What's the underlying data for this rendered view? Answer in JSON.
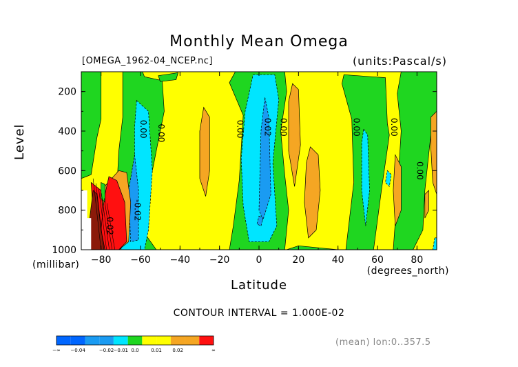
{
  "colors": {
    "dark_blue": "#0066ff",
    "mid_blue": "#1a9bf2",
    "light_blue": "#00e5ff",
    "green": "#1fd620",
    "yellow": "#ffff00",
    "orange": "#f5a623",
    "red": "#ff1010",
    "dark_red": "#8b1a0a"
  },
  "chart_data": {
    "type": "contour",
    "title": "Monthly Mean Omega",
    "file_label": "[OMEGA_1962-04_NCEP.nc]",
    "units_label": "(units:Pascal/s)",
    "xlabel": "Latitude",
    "xunit_label": "(degrees_north)",
    "ylabel": "Level",
    "yunit_label": "(millibar)",
    "xlim": [
      -90,
      90
    ],
    "ylim": [
      1000,
      100
    ],
    "x_ticks": [
      -80,
      -60,
      -40,
      -20,
      0,
      20,
      40,
      60,
      80
    ],
    "x_tick_labels": [
      "−80",
      "−60",
      "−40",
      "−20",
      "0",
      "20",
      "40",
      "60",
      "80"
    ],
    "y_ticks": [
      200,
      400,
      600,
      800,
      1000
    ],
    "y_tick_labels": [
      "200",
      "400",
      "600",
      "800",
      "1000"
    ],
    "contour_interval_text": "CONTOUR INTERVAL = 1.000E-02",
    "mean_note": "(mean) lon:0..357.5",
    "contour_labels": [
      {
        "text": "0.00",
        "x": -60,
        "y": 390
      },
      {
        "text": "0.00",
        "x": -51,
        "y": 410
      },
      {
        "text": "-0.02",
        "x": -63,
        "y": 800
      },
      {
        "text": "0.02",
        "x": -77,
        "y": 880
      },
      {
        "text": "0.00",
        "x": -11,
        "y": 390
      },
      {
        "text": "0.02",
        "x": 3,
        "y": 380
      },
      {
        "text": "0.00",
        "x": 11,
        "y": 380
      },
      {
        "text": "0.00",
        "x": 48,
        "y": 380
      },
      {
        "text": "0.00",
        "x": 67,
        "y": 380
      },
      {
        "text": "0.00",
        "x": 80,
        "y": 600
      }
    ],
    "legend": {
      "levels": [
        "−∞",
        "−0.04",
        "−0.02",
        "−0.01",
        "0.0",
        "0.01",
        "0.02",
        "∞"
      ],
      "box_levels": [
        "-inf",
        "-0.04",
        "-0.03",
        "-0.02",
        "-0.01",
        "0.0",
        "0.01",
        "0.02",
        "0.03",
        "0.04",
        "+inf"
      ]
    },
    "regions": [
      {
        "color": "yellow",
        "pts": [
          [
            -90,
            100
          ],
          [
            90,
            100
          ],
          [
            90,
            1000
          ],
          [
            -90,
            1000
          ]
        ]
      },
      {
        "color": "green",
        "pts": [
          [
            -90,
            100
          ],
          [
            -80,
            100
          ],
          [
            -80,
            340
          ],
          [
            -82,
            430
          ],
          [
            -85,
            620
          ],
          [
            -90,
            640
          ]
        ]
      },
      {
        "color": "green",
        "pts": [
          [
            -69,
            100
          ],
          [
            -59,
            100
          ],
          [
            -58,
            125
          ],
          [
            -49,
            145
          ],
          [
            -48,
            300
          ],
          [
            -52,
            500
          ],
          [
            -56,
            700
          ],
          [
            -57,
            930
          ],
          [
            -52,
            1000
          ],
          [
            -70,
            1000
          ],
          [
            -72,
            690
          ],
          [
            -71,
            500
          ],
          [
            -69,
            330
          ]
        ]
      },
      {
        "color": "green",
        "pts": [
          [
            -51,
            120
          ],
          [
            -41,
            105
          ],
          [
            -42,
            140
          ],
          [
            -50,
            150
          ]
        ]
      },
      {
        "color": "green",
        "pts": [
          [
            -12,
            100
          ],
          [
            13,
            100
          ],
          [
            14,
            200
          ],
          [
            11,
            400
          ],
          [
            13,
            620
          ],
          [
            15,
            800
          ],
          [
            13,
            1000
          ],
          [
            -15,
            1000
          ],
          [
            -13,
            880
          ],
          [
            -10,
            650
          ],
          [
            -8,
            320
          ],
          [
            -15,
            155
          ]
        ]
      },
      {
        "color": "green",
        "pts": [
          [
            20,
            980
          ],
          [
            40,
            1000
          ],
          [
            14,
            1000
          ]
        ]
      },
      {
        "color": "green",
        "pts": [
          [
            43,
            115
          ],
          [
            57,
            125
          ],
          [
            64,
            130
          ],
          [
            65,
            360
          ],
          [
            66,
            420
          ],
          [
            62,
            700
          ],
          [
            58,
            1000
          ],
          [
            44,
            1000
          ],
          [
            48,
            660
          ],
          [
            47,
            340
          ],
          [
            42,
            160
          ]
        ]
      },
      {
        "color": "green",
        "pts": [
          [
            72,
            100
          ],
          [
            90,
            100
          ],
          [
            90,
            390
          ],
          [
            87,
            420
          ],
          [
            84,
            700
          ],
          [
            83,
            900
          ],
          [
            78,
            1000
          ],
          [
            68,
            1000
          ],
          [
            70,
            720
          ],
          [
            72,
            400
          ],
          [
            70,
            210
          ]
        ]
      },
      {
        "color": "light_blue",
        "pts": [
          [
            -62,
            245
          ],
          [
            -56,
            300
          ],
          [
            -54,
            600
          ],
          [
            -56,
            900
          ],
          [
            -58,
            1000
          ],
          [
            -70,
            1000
          ],
          [
            -67,
            900
          ],
          [
            -63,
            620
          ],
          [
            -63,
            380
          ]
        ]
      },
      {
        "color": "mid_blue",
        "pts": [
          [
            -63,
            520
          ],
          [
            -61,
            700
          ],
          [
            -61,
            950
          ],
          [
            -65,
            960
          ],
          [
            -66,
            700
          ]
        ]
      },
      {
        "color": "light_blue",
        "pts": [
          [
            -3,
            115
          ],
          [
            8,
            115
          ],
          [
            10,
            240
          ],
          [
            7,
            560
          ],
          [
            9,
            880
          ],
          [
            5,
            960
          ],
          [
            -5,
            960
          ],
          [
            -8,
            780
          ],
          [
            -9,
            540
          ],
          [
            -7,
            300
          ]
        ]
      },
      {
        "color": "mid_blue",
        "pts": [
          [
            3,
            230
          ],
          [
            5,
            330
          ],
          [
            6,
            720
          ],
          [
            2,
            850
          ],
          [
            0,
            800
          ],
          [
            1,
            400
          ]
        ]
      },
      {
        "color": "mid_blue",
        "pts": [
          [
            0,
            830
          ],
          [
            2,
            840
          ],
          [
            1,
            880
          ],
          [
            -1,
            870
          ]
        ]
      },
      {
        "color": "light_blue",
        "pts": [
          [
            53,
            390
          ],
          [
            55,
            420
          ],
          [
            56,
            700
          ],
          [
            54,
            880
          ],
          [
            52,
            700
          ],
          [
            52,
            460
          ]
        ]
      },
      {
        "color": "light_blue",
        "pts": [
          [
            65,
            600
          ],
          [
            67,
            620
          ],
          [
            66,
            680
          ],
          [
            64,
            660
          ]
        ]
      },
      {
        "color": "light_blue",
        "pts": [
          [
            89,
            940
          ],
          [
            90,
            940
          ],
          [
            90,
            1000
          ],
          [
            88,
            1000
          ]
        ]
      },
      {
        "color": "orange",
        "pts": [
          [
            -28,
            280
          ],
          [
            -25,
            330
          ],
          [
            -25,
            600
          ],
          [
            -27,
            730
          ],
          [
            -30,
            640
          ],
          [
            -30,
            400
          ]
        ]
      },
      {
        "color": "orange",
        "pts": [
          [
            17,
            160
          ],
          [
            20,
            190
          ],
          [
            21,
            470
          ],
          [
            18,
            680
          ],
          [
            15,
            500
          ],
          [
            15,
            250
          ]
        ]
      },
      {
        "color": "orange",
        "pts": [
          [
            26,
            480
          ],
          [
            30,
            520
          ],
          [
            31,
            700
          ],
          [
            29,
            900
          ],
          [
            25,
            940
          ],
          [
            23,
            760
          ],
          [
            24,
            560
          ]
        ]
      },
      {
        "color": "orange",
        "pts": [
          [
            69,
            520
          ],
          [
            72,
            580
          ],
          [
            72,
            800
          ],
          [
            69,
            880
          ],
          [
            68,
            700
          ]
        ]
      },
      {
        "color": "orange",
        "pts": [
          [
            84,
            720
          ],
          [
            86,
            700
          ],
          [
            86,
            800
          ],
          [
            84,
            840
          ]
        ]
      },
      {
        "color": "orange",
        "pts": [
          [
            87,
            330
          ],
          [
            90,
            300
          ],
          [
            90,
            720
          ],
          [
            88,
            660
          ],
          [
            87,
            480
          ]
        ]
      },
      {
        "color": "orange",
        "pts": [
          [
            -71,
            600
          ],
          [
            -67,
            610
          ],
          [
            -65,
            760
          ],
          [
            -66,
            960
          ],
          [
            -71,
            1000
          ],
          [
            -85,
            1000
          ],
          [
            -80,
            700
          ]
        ]
      },
      {
        "color": "red",
        "pts": [
          [
            -76,
            630
          ],
          [
            -72,
            650
          ],
          [
            -68,
            760
          ],
          [
            -67,
            960
          ],
          [
            -71,
            1000
          ],
          [
            -82,
            1000
          ],
          [
            -78,
            720
          ]
        ]
      },
      {
        "color": "red",
        "pts": [
          [
            -85,
            660
          ],
          [
            -80,
            700
          ],
          [
            -79,
            800
          ],
          [
            -81,
            1000
          ],
          [
            -86,
            1000
          ],
          [
            -84,
            820
          ]
        ]
      },
      {
        "color": "dark_red",
        "pts": [
          [
            -84,
            700
          ],
          [
            -82,
            720
          ],
          [
            -80,
            900
          ],
          [
            -78,
            1000
          ],
          [
            -86,
            1000
          ],
          [
            -86,
            860
          ]
        ]
      },
      {
        "color": "green",
        "pts": [
          [
            -80,
            660
          ],
          [
            -78,
            670
          ],
          [
            -78,
            760
          ],
          [
            -80,
            740
          ]
        ]
      }
    ],
    "blank_region": [
      [
        -90,
        1000
      ],
      [
        -90,
        700
      ],
      [
        -87,
        700
      ],
      [
        -87,
        840
      ],
      [
        -85,
        840
      ],
      [
        -85,
        1000
      ]
    ]
  }
}
